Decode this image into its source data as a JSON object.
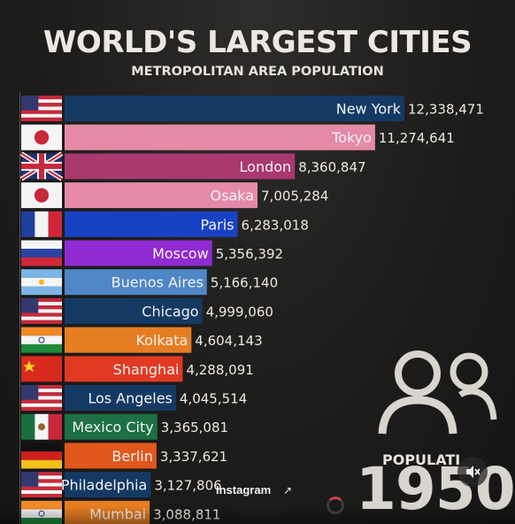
{
  "header": {
    "title": "WORLD'S LARGEST CITIES",
    "subtitle": "METROPOLITAN AREA POPULATION"
  },
  "chart_data": {
    "type": "bar",
    "orientation": "horizontal",
    "title": "WORLD'S LARGEST CITIES",
    "subtitle": "METROPOLITAN AREA POPULATION",
    "categories": [
      "New York",
      "Tokyo",
      "London",
      "Osaka",
      "Paris",
      "Moscow",
      "Buenos Aires",
      "Chicago",
      "Kolkata",
      "Shanghai",
      "Los Angeles",
      "Mexico City",
      "Berlin",
      "Philadelphia",
      "Mumbai"
    ],
    "values": [
      12338471,
      11274641,
      8360847,
      7005284,
      6283018,
      5356392,
      5166140,
      4999060,
      4604143,
      4288091,
      4045514,
      3365081,
      3337621,
      3127806,
      3088811
    ],
    "value_labels": [
      "12,338,471",
      "11,274,641",
      "8,360,847",
      "7,005,284",
      "6,283,018",
      "5,356,392",
      "5,166,140",
      "4,999,060",
      "4,604,143",
      "4,288,091",
      "4,045,514",
      "3,365,081",
      "3,337,621",
      "3,127,806",
      "3,088,811"
    ],
    "country_flags": [
      "united-states-flag",
      "japan-flag",
      "united-kingdom-flag",
      "japan-flag",
      "france-flag",
      "russia-flag",
      "argentina-flag",
      "united-states-flag",
      "india-flag",
      "china-flag",
      "united-states-flag",
      "mexico-flag",
      "germany-flag",
      "united-states-flag",
      "india-flag"
    ],
    "bar_colors": [
      "#143a64",
      "#e58aa6",
      "#a8396e",
      "#e58aa6",
      "#1842c4",
      "#8f2bd0",
      "#4e86c6",
      "#143a64",
      "#e67d22",
      "#e03a22",
      "#143a64",
      "#1c7044",
      "#e0581c",
      "#143a64",
      "#e67d22"
    ],
    "grid": false,
    "legend": "none"
  },
  "overlay": {
    "population_label": "POPULATI",
    "population_label_full": "POPULATION",
    "year": "1950",
    "people_icon": "people-icon"
  },
  "instagram": {
    "label": "Instagram",
    "external_icon": "external-link-icon",
    "mute_icon": "speaker-muted-icon"
  }
}
